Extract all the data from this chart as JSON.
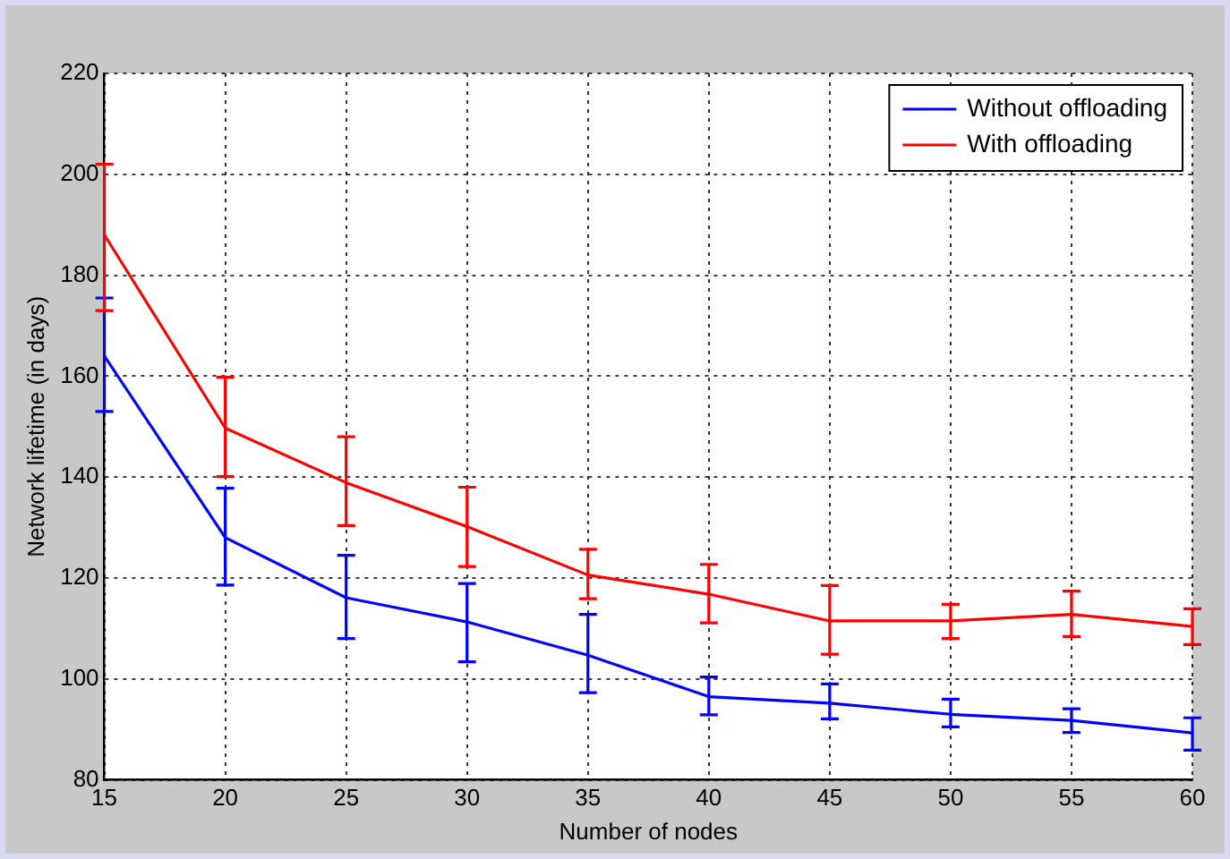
{
  "chart_data": {
    "type": "line",
    "xlabel": "Number of nodes",
    "ylabel": "Network lifetime (in days)",
    "x": [
      15,
      20,
      25,
      30,
      35,
      40,
      45,
      50,
      55,
      60
    ],
    "series": [
      {
        "name": "Without offloading",
        "color": "#0000ff",
        "values": [
          164,
          128,
          116.1,
          111.3,
          104.7,
          96.5,
          95.2,
          93,
          91.8,
          89.3
        ],
        "errors": [
          [
            153,
            175.5
          ],
          [
            118.6,
            137.8
          ],
          [
            108,
            124.5
          ],
          [
            103.4,
            118.9
          ],
          [
            97.3,
            112.8
          ],
          [
            92.9,
            100.4
          ],
          [
            92.1,
            99
          ],
          [
            90.5,
            96
          ],
          [
            89.4,
            94.1
          ],
          [
            85.9,
            92.3
          ]
        ]
      },
      {
        "name": "With offloading",
        "color": "#ff0000",
        "values": [
          188,
          149.7,
          138.9,
          130.2,
          120.6,
          116.8,
          111.5,
          111.5,
          112.8,
          110.4
        ],
        "errors": [
          [
            173,
            202
          ],
          [
            140.1,
            159.8
          ],
          [
            130.4,
            148
          ],
          [
            122.3,
            138
          ],
          [
            115.9,
            125.7
          ],
          [
            111.1,
            122.7
          ],
          [
            104.9,
            118.5
          ],
          [
            108,
            114.8
          ],
          [
            108.4,
            117.4
          ],
          [
            106.8,
            113.9
          ]
        ]
      }
    ],
    "xlim": [
      15,
      60
    ],
    "xticks": [
      15,
      20,
      25,
      30,
      35,
      40,
      45,
      50,
      55,
      60
    ],
    "ylim": [
      80,
      220
    ],
    "yticks": [
      80,
      100,
      120,
      140,
      160,
      180,
      200,
      220
    ],
    "grid": true,
    "legend": "top right",
    "marker": "none",
    "line_style": "solid"
  }
}
